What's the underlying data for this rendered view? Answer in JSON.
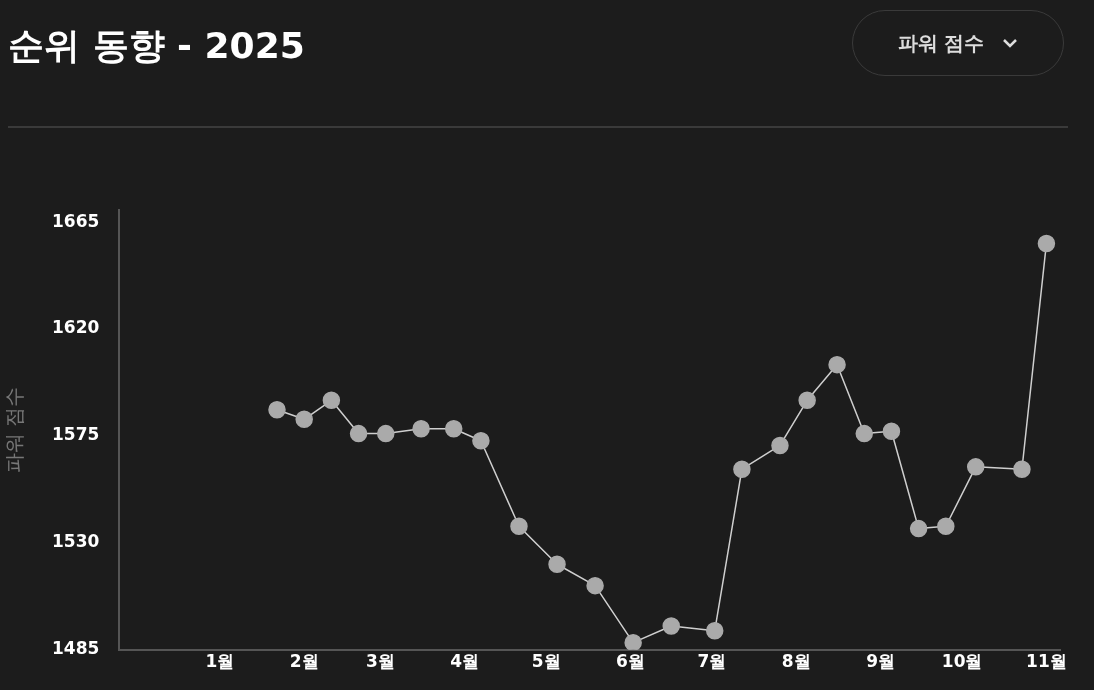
{
  "chart_data": {
    "type": "line",
    "title": "순위 동향 - 2025",
    "ylabel": "파워 점수",
    "annotations": [
      "파워 점수"
    ],
    "x": [
      "2025-01-22",
      "2025-02-01",
      "2025-02-11",
      "2025-02-21",
      "2025-03-03",
      "2025-03-16",
      "2025-03-28",
      "2025-04-07",
      "2025-04-21",
      "2025-05-05",
      "2025-05-19",
      "2025-06-02",
      "2025-06-16",
      "2025-07-02",
      "2025-07-12",
      "2025-07-26",
      "2025-08-05",
      "2025-08-16",
      "2025-08-26",
      "2025-09-05",
      "2025-09-15",
      "2025-09-25",
      "2025-10-06",
      "2025-10-23",
      "2025-11-01"
    ],
    "series": [
      {
        "color": "#aaaaaa",
        "values": [
          1586,
          1582,
          1590,
          1576,
          1576,
          1578,
          1578,
          1573,
          1537,
          1521,
          1512,
          1488,
          1495,
          1493,
          1561,
          1571,
          1590,
          1605,
          1576,
          1577,
          1536,
          1537,
          1562,
          1561,
          1656
        ]
      }
    ],
    "xlim": [
      "2024-11-25",
      "2025-11-06"
    ],
    "xticks": [
      {
        "value": "2025-01-01",
        "label": "1월"
      },
      {
        "value": "2025-02-01",
        "label": "2월"
      },
      {
        "value": "2025-03-01",
        "label": "3월"
      },
      {
        "value": "2025-04-01",
        "label": "4월"
      },
      {
        "value": "2025-05-01",
        "label": "5월"
      },
      {
        "value": "2025-06-01",
        "label": "6월"
      },
      {
        "value": "2025-07-01",
        "label": "7월"
      },
      {
        "value": "2025-08-01",
        "label": "8월"
      },
      {
        "value": "2025-09-01",
        "label": "9월"
      },
      {
        "value": "2025-10-01",
        "label": "10월"
      },
      {
        "value": "2025-11-01",
        "label": "11월"
      }
    ],
    "ylim": [
      1485,
      1670
    ],
    "yticks": [
      1485,
      1530,
      1575,
      1620,
      1665
    ],
    "grid": false,
    "legend": false,
    "marker": "circle",
    "line_style": "solid"
  }
}
